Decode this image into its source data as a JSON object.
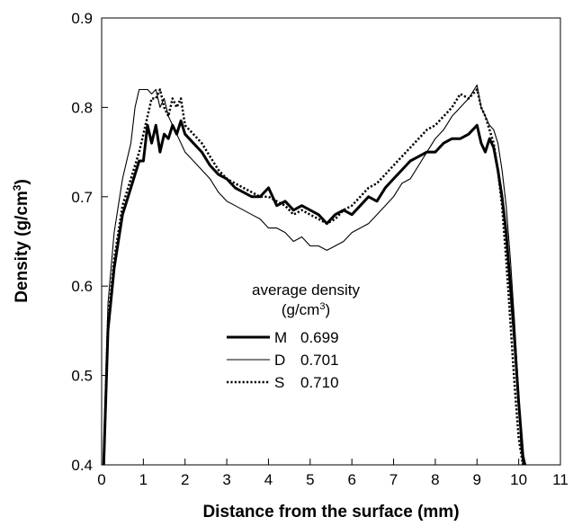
{
  "chart_data": {
    "type": "line",
    "title": "",
    "xlabel": "Distance from the surface (mm)",
    "ylabel_main": "Density (g/cm",
    "ylabel_sup": "3",
    "ylabel_tail": ")",
    "xlim": [
      0,
      11
    ],
    "ylim": [
      0.4,
      0.9
    ],
    "x_ticks": [
      "0",
      "1",
      "2",
      "3",
      "4",
      "5",
      "6",
      "7",
      "8",
      "9",
      "10",
      "11"
    ],
    "y_ticks": [
      "0.4",
      "0.5",
      "0.6",
      "0.7",
      "0.8",
      "0.9"
    ],
    "grid": false,
    "legend": {
      "title_line1": "average density",
      "title_line2_main": "(g/cm",
      "title_line2_sup": "3",
      "title_line2_tail": ")",
      "placement": "lower-center",
      "entries": [
        {
          "name": "M",
          "value": "0.699",
          "style": "thick-solid"
        },
        {
          "name": "D",
          "value": "0.701",
          "style": "thin-solid"
        },
        {
          "name": "S",
          "value": "0.710",
          "style": "dotted"
        }
      ]
    },
    "series": [
      {
        "name": "M",
        "style": "thick-solid",
        "x": [
          0.05,
          0.15,
          0.3,
          0.5,
          0.7,
          0.9,
          1.0,
          1.1,
          1.2,
          1.3,
          1.4,
          1.5,
          1.6,
          1.7,
          1.8,
          1.9,
          2.0,
          2.2,
          2.4,
          2.6,
          2.8,
          3.0,
          3.2,
          3.4,
          3.6,
          3.8,
          4.0,
          4.2,
          4.4,
          4.6,
          4.8,
          5.0,
          5.2,
          5.4,
          5.6,
          5.8,
          6.0,
          6.2,
          6.4,
          6.6,
          6.8,
          7.0,
          7.2,
          7.4,
          7.6,
          7.8,
          8.0,
          8.2,
          8.4,
          8.6,
          8.8,
          9.0,
          9.1,
          9.2,
          9.3,
          9.4,
          9.5,
          9.6,
          9.7,
          9.8,
          9.9,
          10.0,
          10.1,
          10.15
        ],
        "y": [
          0.4,
          0.55,
          0.62,
          0.68,
          0.71,
          0.74,
          0.74,
          0.78,
          0.76,
          0.78,
          0.75,
          0.77,
          0.765,
          0.78,
          0.77,
          0.785,
          0.77,
          0.76,
          0.75,
          0.735,
          0.725,
          0.72,
          0.71,
          0.705,
          0.7,
          0.7,
          0.71,
          0.69,
          0.695,
          0.685,
          0.69,
          0.685,
          0.68,
          0.67,
          0.68,
          0.685,
          0.68,
          0.69,
          0.7,
          0.695,
          0.71,
          0.72,
          0.73,
          0.74,
          0.745,
          0.75,
          0.75,
          0.76,
          0.765,
          0.765,
          0.77,
          0.78,
          0.76,
          0.75,
          0.765,
          0.755,
          0.73,
          0.7,
          0.66,
          0.6,
          0.54,
          0.47,
          0.41,
          0.4
        ]
      },
      {
        "name": "D",
        "style": "thin-solid",
        "x": [
          0.05,
          0.15,
          0.3,
          0.5,
          0.7,
          0.8,
          0.9,
          1.0,
          1.1,
          1.2,
          1.3,
          1.4,
          1.5,
          1.6,
          1.8,
          2.0,
          2.2,
          2.4,
          2.6,
          2.8,
          3.0,
          3.2,
          3.4,
          3.6,
          3.8,
          4.0,
          4.2,
          4.4,
          4.6,
          4.8,
          5.0,
          5.2,
          5.4,
          5.6,
          5.8,
          6.0,
          6.2,
          6.4,
          6.6,
          6.8,
          7.0,
          7.2,
          7.4,
          7.6,
          7.8,
          8.0,
          8.2,
          8.4,
          8.6,
          8.8,
          9.0,
          9.1,
          9.2,
          9.3,
          9.4,
          9.5,
          9.6,
          9.7,
          9.8,
          9.9,
          10.0,
          10.05,
          10.1
        ],
        "y": [
          0.4,
          0.58,
          0.66,
          0.72,
          0.76,
          0.8,
          0.82,
          0.82,
          0.82,
          0.815,
          0.82,
          0.8,
          0.81,
          0.79,
          0.77,
          0.75,
          0.74,
          0.73,
          0.72,
          0.705,
          0.695,
          0.69,
          0.685,
          0.68,
          0.675,
          0.665,
          0.665,
          0.66,
          0.65,
          0.655,
          0.645,
          0.645,
          0.64,
          0.645,
          0.65,
          0.66,
          0.665,
          0.67,
          0.68,
          0.69,
          0.7,
          0.715,
          0.72,
          0.735,
          0.75,
          0.765,
          0.775,
          0.79,
          0.8,
          0.81,
          0.825,
          0.8,
          0.79,
          0.78,
          0.775,
          0.76,
          0.73,
          0.69,
          0.63,
          0.56,
          0.48,
          0.42,
          0.4
        ]
      },
      {
        "name": "S",
        "style": "dotted",
        "x": [
          0.05,
          0.15,
          0.3,
          0.5,
          0.7,
          0.9,
          1.0,
          1.1,
          1.2,
          1.3,
          1.4,
          1.5,
          1.6,
          1.7,
          1.8,
          1.9,
          2.0,
          2.2,
          2.4,
          2.6,
          2.8,
          3.0,
          3.2,
          3.4,
          3.6,
          3.8,
          4.0,
          4.2,
          4.4,
          4.6,
          4.8,
          5.0,
          5.2,
          5.4,
          5.6,
          5.8,
          6.0,
          6.2,
          6.4,
          6.6,
          6.8,
          7.0,
          7.2,
          7.4,
          7.6,
          7.8,
          8.0,
          8.2,
          8.4,
          8.6,
          8.8,
          9.0,
          9.1,
          9.2,
          9.3,
          9.4,
          9.5,
          9.6,
          9.7,
          9.8,
          9.9,
          10.0,
          10.1
        ],
        "y": [
          0.4,
          0.56,
          0.63,
          0.69,
          0.72,
          0.75,
          0.77,
          0.79,
          0.81,
          0.81,
          0.82,
          0.8,
          0.79,
          0.81,
          0.8,
          0.81,
          0.78,
          0.77,
          0.76,
          0.745,
          0.73,
          0.72,
          0.715,
          0.71,
          0.705,
          0.7,
          0.7,
          0.695,
          0.69,
          0.68,
          0.685,
          0.68,
          0.675,
          0.67,
          0.675,
          0.685,
          0.69,
          0.7,
          0.71,
          0.715,
          0.725,
          0.735,
          0.745,
          0.755,
          0.765,
          0.775,
          0.78,
          0.79,
          0.8,
          0.815,
          0.81,
          0.82,
          0.8,
          0.79,
          0.775,
          0.76,
          0.73,
          0.69,
          0.63,
          0.56,
          0.49,
          0.43,
          0.4
        ]
      }
    ]
  }
}
